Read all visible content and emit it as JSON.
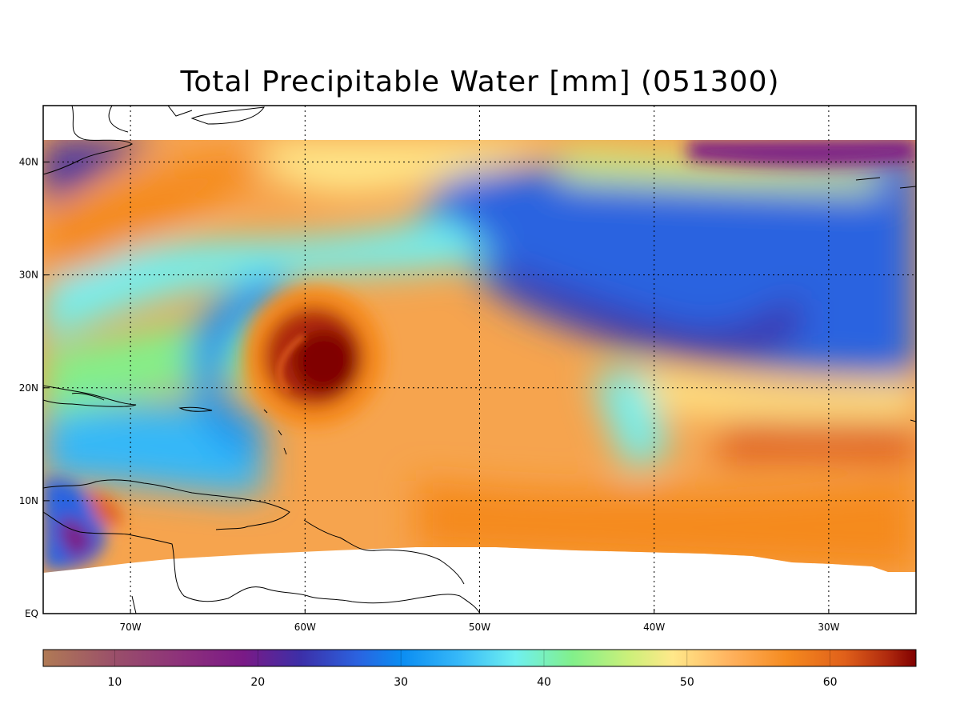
{
  "title": "Total Precipitable Water [mm]  (051300)",
  "map": {
    "type": "heatmap",
    "variable_units": "mm",
    "lon_range": [
      -75,
      -25
    ],
    "lat_range": [
      0,
      45
    ],
    "data_lat_range": [
      5,
      42
    ],
    "grid_lines": "dotted",
    "x_ticks": [
      {
        "value": -70,
        "label": "70W"
      },
      {
        "value": -60,
        "label": "60W"
      },
      {
        "value": -50,
        "label": "50W"
      },
      {
        "value": -40,
        "label": "40W"
      },
      {
        "value": -30,
        "label": "30W"
      }
    ],
    "y_ticks": [
      {
        "value": 0,
        "label": "EQ"
      },
      {
        "value": 10,
        "label": "10N"
      },
      {
        "value": 20,
        "label": "20N"
      },
      {
        "value": 30,
        "label": "30N"
      },
      {
        "value": 40,
        "label": "40N"
      }
    ],
    "features": [
      {
        "name": "hurricane core",
        "lon": -59,
        "lat": 22.5,
        "value": 66
      },
      {
        "name": "moist band SW-NE",
        "lon": -67,
        "lat": 36,
        "value": 56
      },
      {
        "name": "dry tongue",
        "lon": -42,
        "lat": 26,
        "value": 24
      },
      {
        "name": "tropical moist belt",
        "lon": -40,
        "lat": 9,
        "value": 54
      }
    ]
  },
  "colorbar": {
    "range": [
      5,
      66
    ],
    "ticks": [
      10,
      20,
      30,
      40,
      50,
      60
    ],
    "stops": [
      {
        "value": 5,
        "color": "#b07a55"
      },
      {
        "value": 10,
        "color": "#9a4f6a"
      },
      {
        "value": 15,
        "color": "#8c2f7c"
      },
      {
        "value": 19,
        "color": "#7a1a86"
      },
      {
        "value": 23,
        "color": "#3c2fa8"
      },
      {
        "value": 27,
        "color": "#2b63e0"
      },
      {
        "value": 30,
        "color": "#0a8cf2"
      },
      {
        "value": 34,
        "color": "#36b8f8"
      },
      {
        "value": 38,
        "color": "#6ff0f0"
      },
      {
        "value": 42,
        "color": "#82f08a"
      },
      {
        "value": 46,
        "color": "#cdf07a"
      },
      {
        "value": 49,
        "color": "#ffe88a"
      },
      {
        "value": 53,
        "color": "#ffb25e"
      },
      {
        "value": 57,
        "color": "#f58a1f"
      },
      {
        "value": 61,
        "color": "#e0601a"
      },
      {
        "value": 64,
        "color": "#b02a0e"
      },
      {
        "value": 66,
        "color": "#800000"
      }
    ]
  }
}
